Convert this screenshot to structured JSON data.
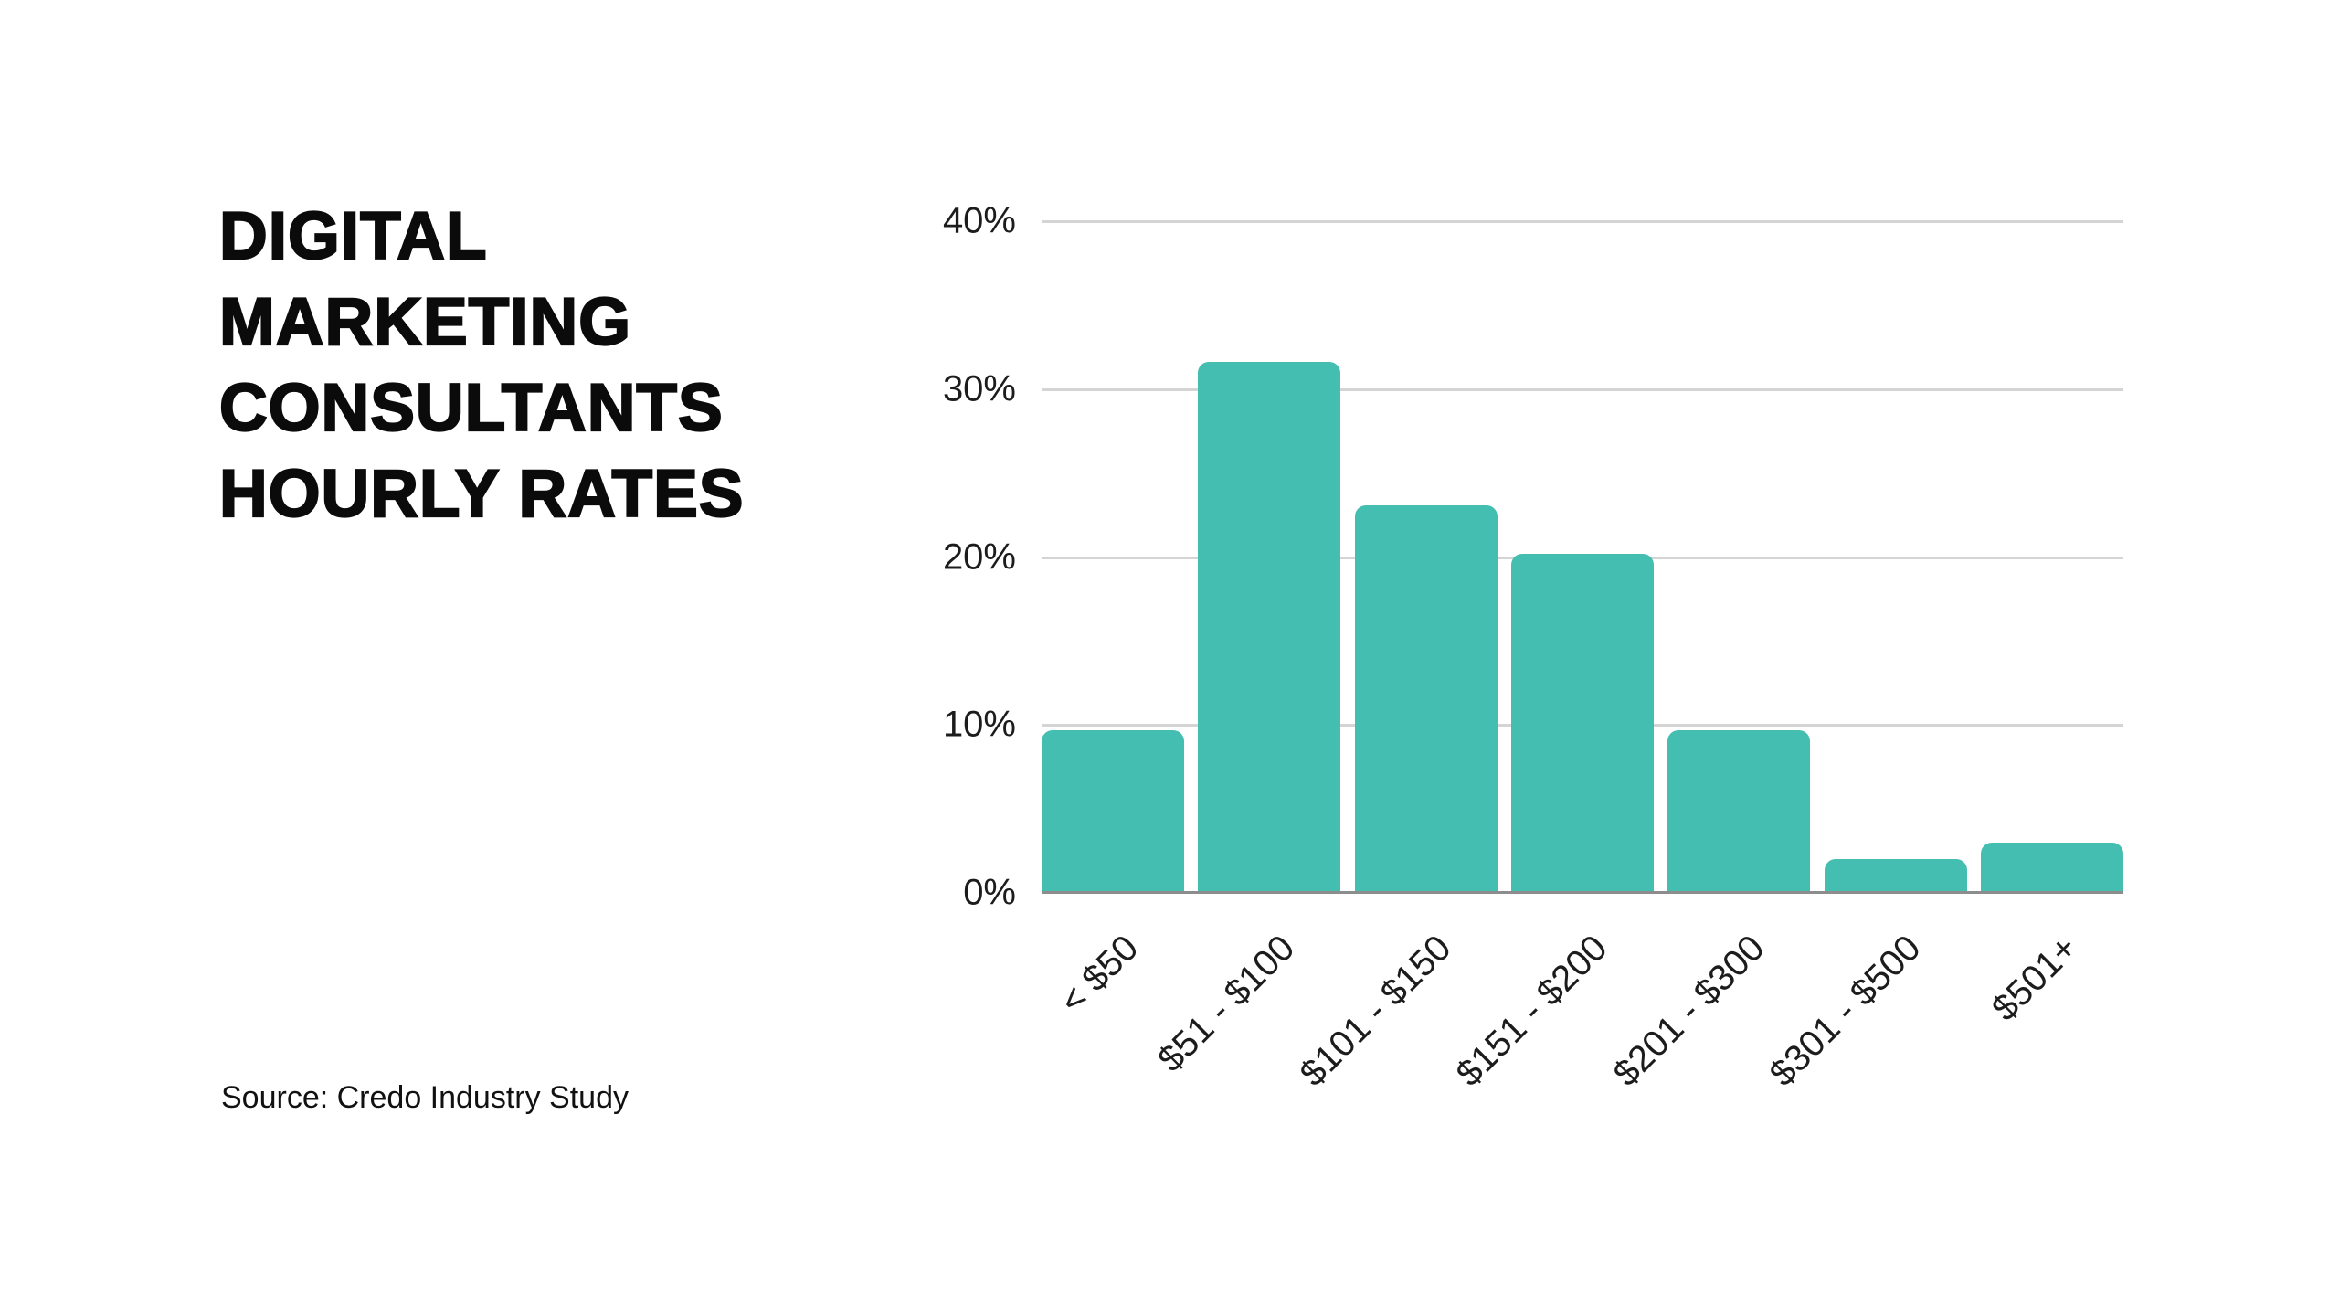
{
  "page": {
    "background": "#FFFFFF"
  },
  "title": {
    "lines": [
      "DIGITAL",
      "MARKETING",
      "CONSULTANTS",
      "HOURLY RATES"
    ],
    "color": "#0B0B0B"
  },
  "source": {
    "text": "Source: Credo Industry Study"
  },
  "chart_data": {
    "type": "bar",
    "title": "Digital Marketing Consultants Hourly Rates",
    "categories": [
      "< $50",
      "$51 - $100",
      "$101 - $150",
      "$151 - $200",
      "$201 - $300",
      "$301 - $500",
      "$501+"
    ],
    "values": [
      9.7,
      31.6,
      23.1,
      20.2,
      9.7,
      2,
      3
    ],
    "unit": "percent",
    "xlabel": "",
    "ylabel": "",
    "ylim": [
      0,
      40
    ],
    "ytick_labels_top_to_bottom": [
      "40%",
      "30%",
      "20%",
      "10%",
      "0%"
    ],
    "grid": true,
    "legend": false,
    "bar_color": "#45BEB2",
    "gridline_color": "#D4D4D4",
    "axis_line_color": "#8D8D8D",
    "tick_text_color": "#1C1C1C"
  }
}
